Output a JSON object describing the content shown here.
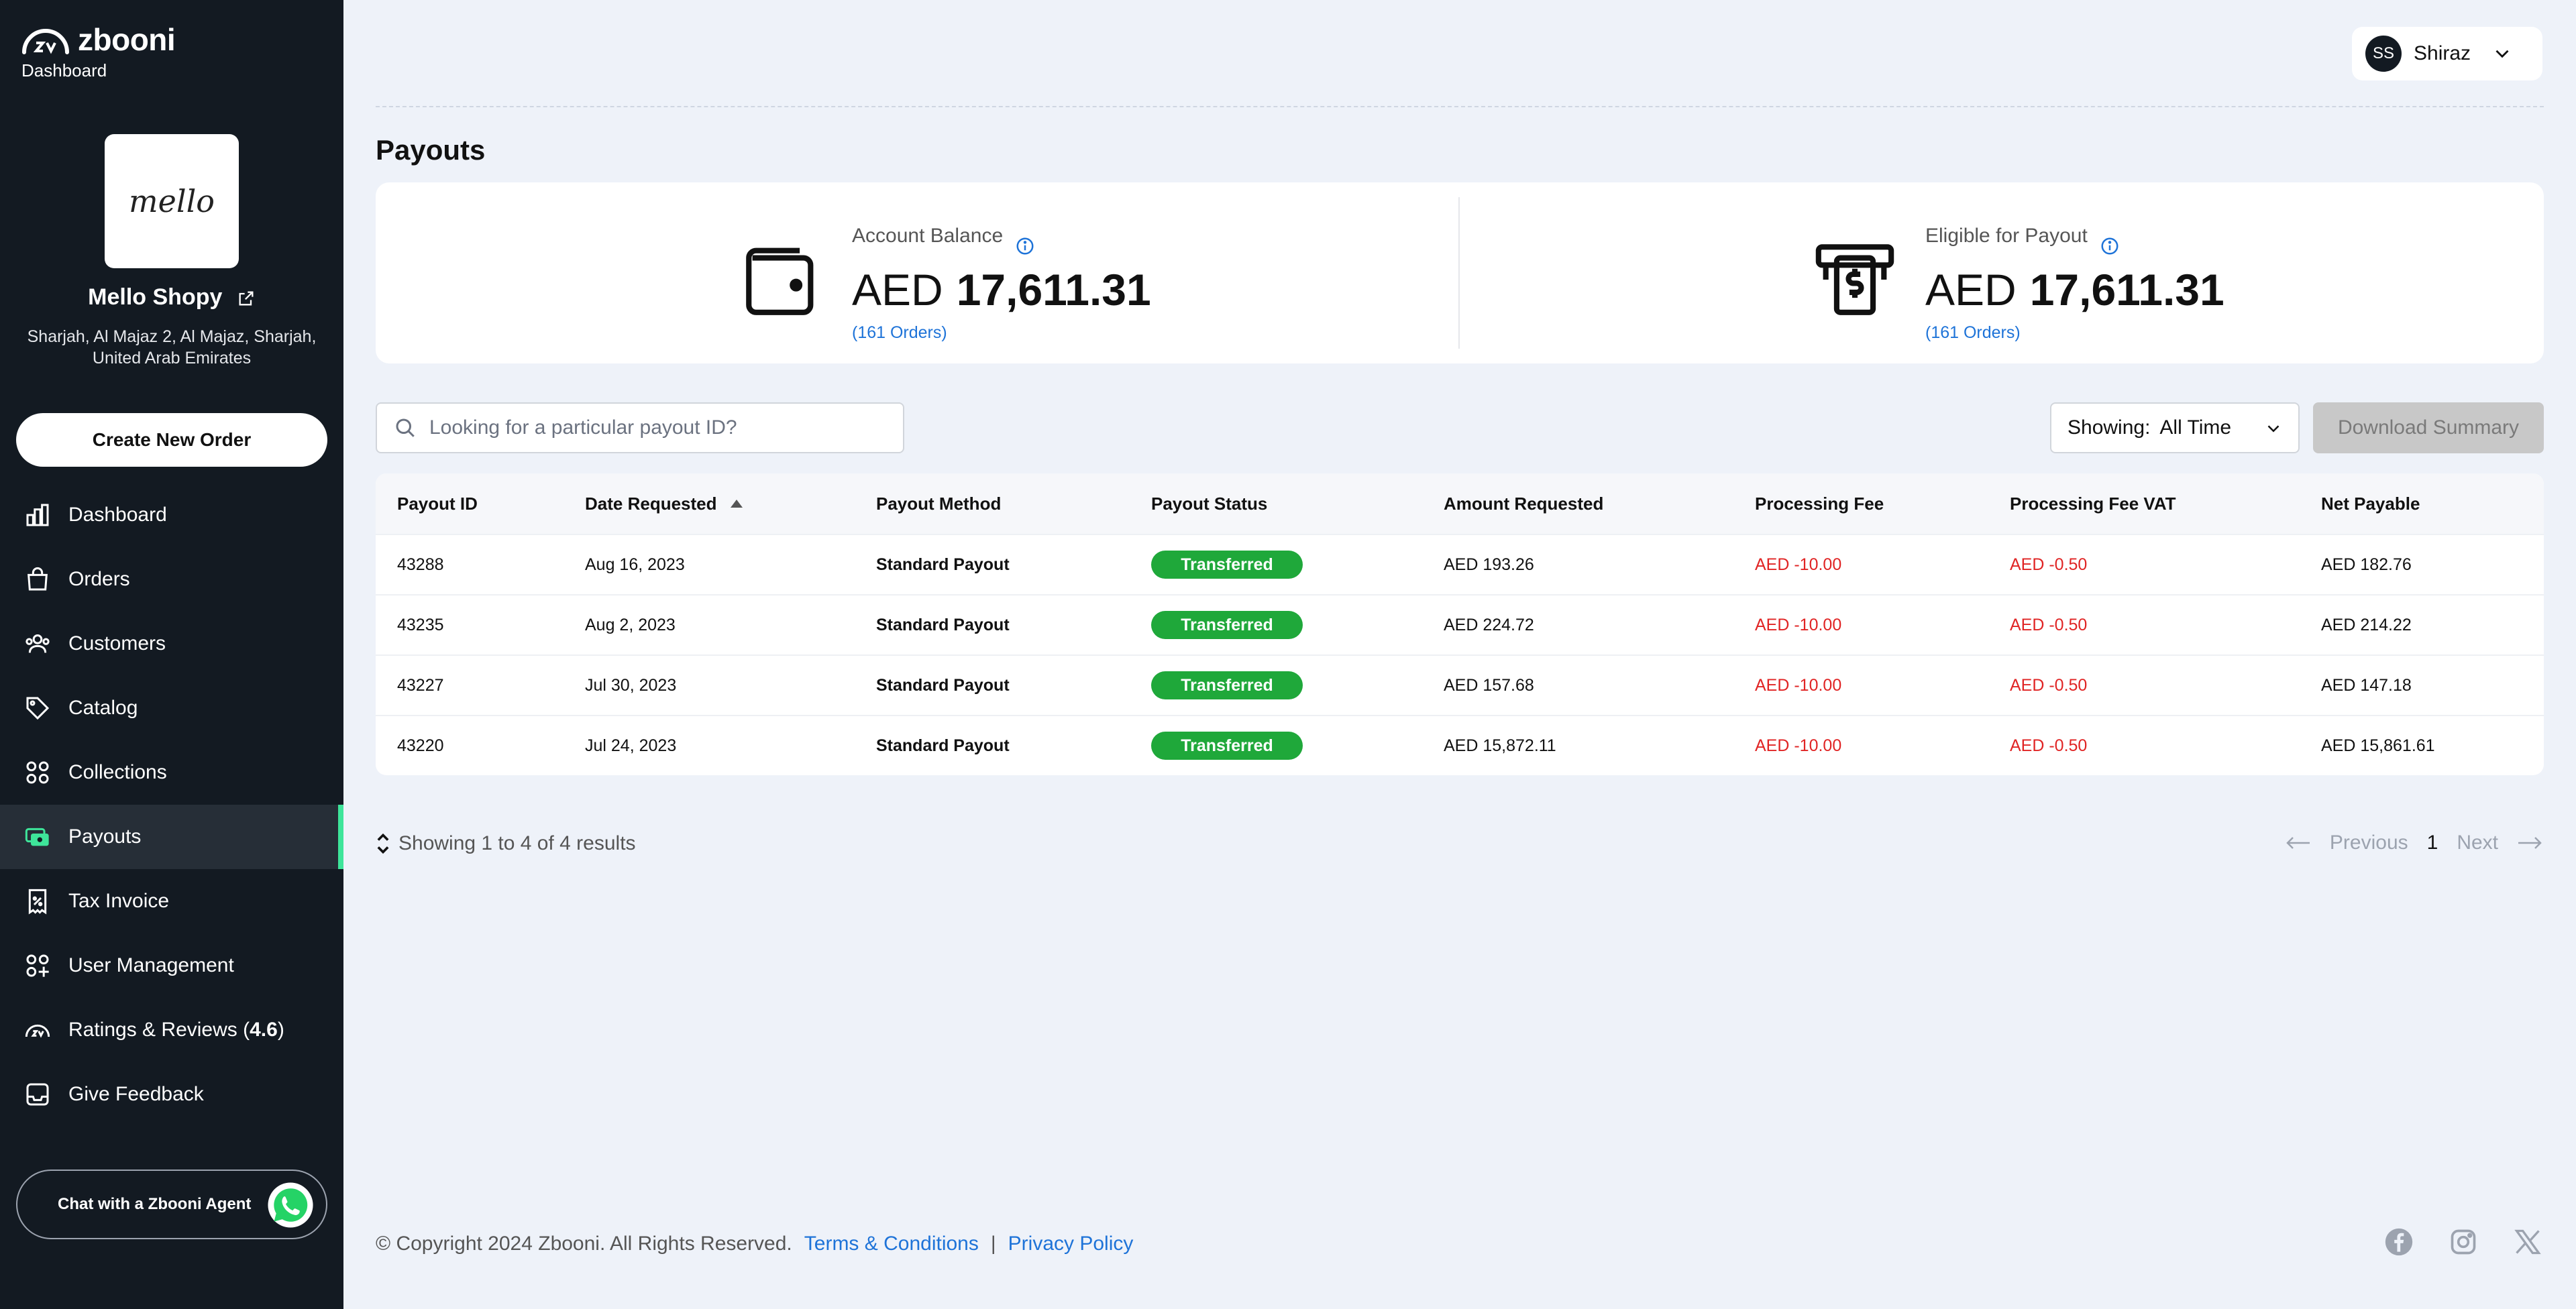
{
  "brand": {
    "name": "zbooni",
    "subtitle": "Dashboard"
  },
  "store": {
    "logo_text": "mello",
    "name": "Mello Shopy",
    "address": "Sharjah, Al Majaz 2, Al Majaz, Sharjah, United Arab Emirates"
  },
  "create_order_label": "Create New Order",
  "nav": {
    "dashboard": "Dashboard",
    "orders": "Orders",
    "customers": "Customers",
    "catalog": "Catalog",
    "collections": "Collections",
    "payouts": "Payouts",
    "tax_invoice": "Tax Invoice",
    "user_management": "User Management",
    "ratings_prefix": "Ratings & Reviews (",
    "ratings_value": "4.6",
    "ratings_suffix": ")",
    "feedback": "Give Feedback"
  },
  "chat_label": "Chat with a Zbooni Agent",
  "user": {
    "initials": "SS",
    "name": "Shiraz"
  },
  "page_title": "Payouts",
  "summary": {
    "balance": {
      "label": "Account Balance",
      "currency": "AED",
      "amount": "17,611.31",
      "orders": "(161 Orders)"
    },
    "eligible": {
      "label": "Eligible for Payout",
      "currency": "AED",
      "amount": "17,611.31",
      "orders": "(161 Orders)"
    }
  },
  "search": {
    "placeholder": "Looking for a particular payout ID?"
  },
  "filter": {
    "label": "Showing:",
    "value": "All Time"
  },
  "download_label": "Download Summary",
  "table": {
    "headers": [
      "Payout ID",
      "Date Requested",
      "Payout Method",
      "Payout Status",
      "Amount Requested",
      "Processing Fee",
      "Processing Fee VAT",
      "Net Payable"
    ],
    "rows": [
      [
        "43288",
        "Aug 16, 2023",
        "Standard Payout",
        "Transferred",
        "AED 193.26",
        "AED -10.00",
        "AED -0.50",
        "AED 182.76"
      ],
      [
        "43235",
        "Aug 2, 2023",
        "Standard Payout",
        "Transferred",
        "AED 224.72",
        "AED -10.00",
        "AED -0.50",
        "AED 214.22"
      ],
      [
        "43227",
        "Jul 30, 2023",
        "Standard Payout",
        "Transferred",
        "AED 157.68",
        "AED -10.00",
        "AED -0.50",
        "AED 147.18"
      ],
      [
        "43220",
        "Jul 24, 2023",
        "Standard Payout",
        "Transferred",
        "AED 15,872.11",
        "AED -10.00",
        "AED -0.50",
        "AED 15,861.61"
      ]
    ]
  },
  "results_text": "Showing 1 to 4 of 4 results",
  "pagination": {
    "previous": "Previous",
    "page": "1",
    "next": "Next"
  },
  "footer": {
    "copyright": "© Copyright 2024 Zbooni. All Rights Reserved.",
    "terms": "Terms & Conditions",
    "separator": "|",
    "privacy": "Privacy Policy"
  },
  "colors": {
    "sidebar_bg": "#131a22",
    "accent_green": "#3ee59a",
    "status_green": "#1fa83a",
    "link_blue": "#1e73d8",
    "negative_red": "#e02424"
  }
}
